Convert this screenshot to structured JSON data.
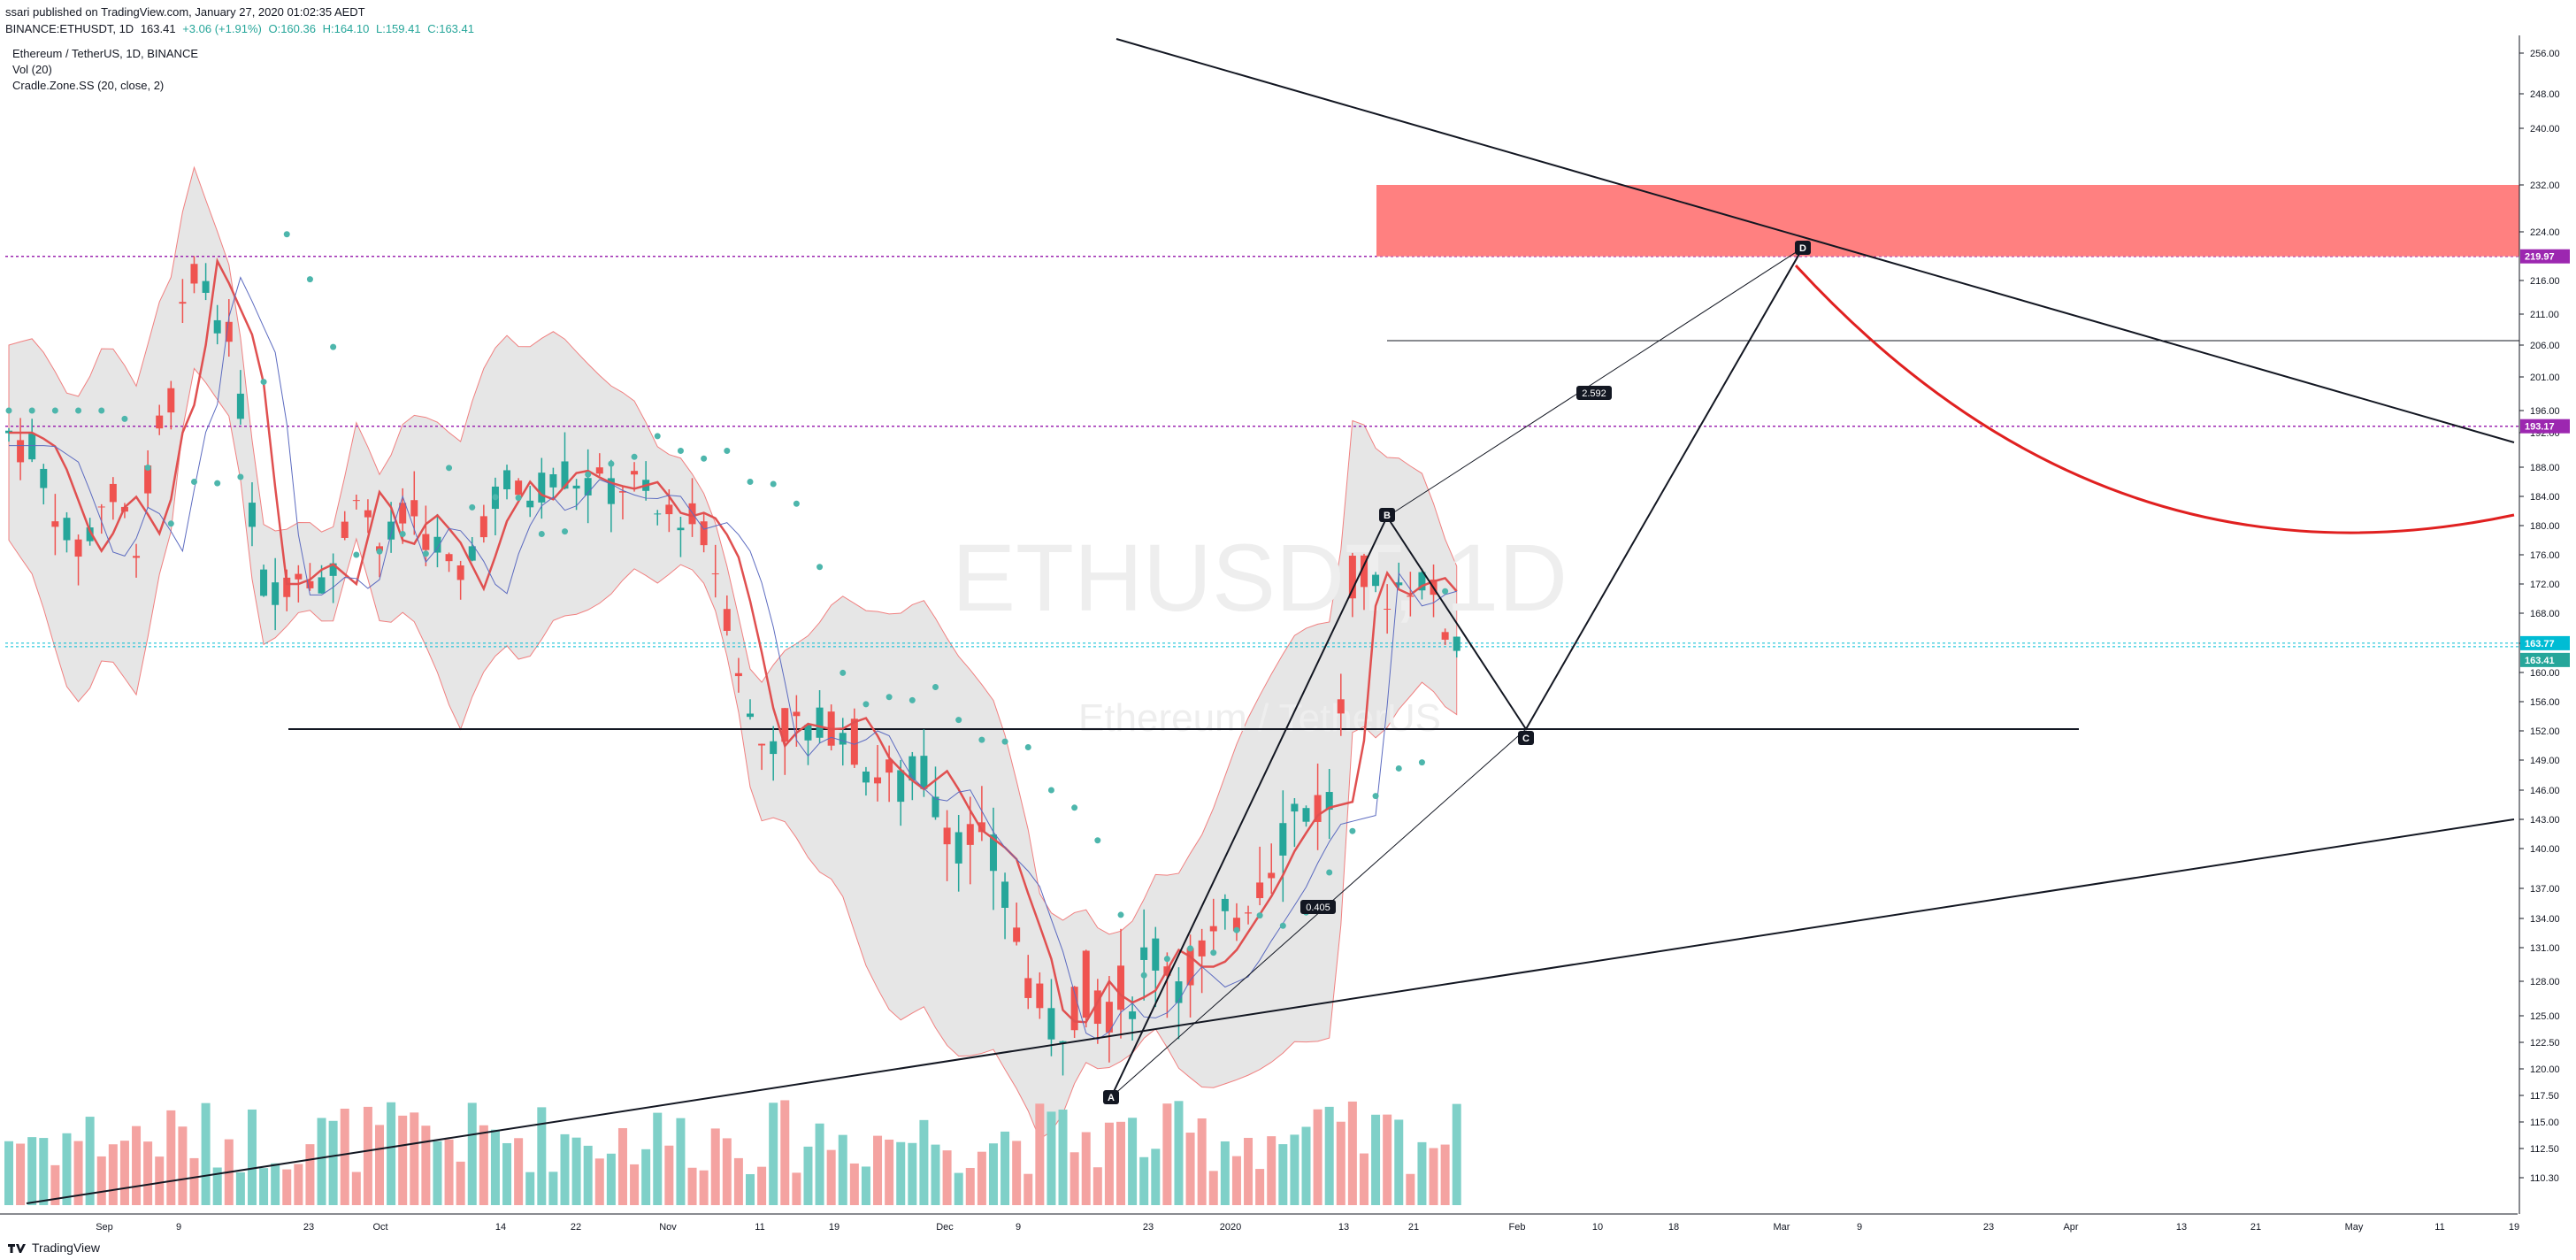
{
  "header": {
    "publisher": "ssari published on TradingView.com, January 27, 2020 01:02:35 AEDT",
    "symbol": "BINANCE:ETHUSDT, 1D",
    "last": "163.41",
    "change": "+3.06 (+1.91%)",
    "open": "O:160.36",
    "high": "H:164.10",
    "low": "L:159.41",
    "close": "C:163.41"
  },
  "legend": {
    "title": "Ethereum / TetherUS, 1D, BINANCE",
    "volume": "Vol (20)",
    "indicator": "Cradle.Zone.SS (20, close, 2)"
  },
  "watermark": {
    "symbol": "ETHUSDT, 1D",
    "name": "Ethereum / TetherUS"
  },
  "footer": {
    "brand": "TradingView"
  },
  "colors": {
    "up": "#26a69a",
    "down": "#ef5350",
    "zone": "#ff8080",
    "purple": "#9c27b0",
    "cyan": "#00bcd4"
  },
  "chart_data": {
    "type": "candlestick",
    "y_ticks": [
      "256.00",
      "248.00",
      "240.00",
      "232.00",
      "224.00",
      "216.00",
      "211.00",
      "206.00",
      "201.00",
      "196.00",
      "192.00",
      "188.00",
      "184.00",
      "180.00",
      "176.00",
      "172.00",
      "168.00",
      "164.00",
      "160.00",
      "156.00",
      "152.00",
      "149.00",
      "146.00",
      "143.00",
      "140.00",
      "137.00",
      "134.00",
      "131.00",
      "128.00",
      "125.00",
      "122.50",
      "120.00",
      "117.50",
      "115.00",
      "112.50",
      "110.30"
    ],
    "x_ticks": [
      "Sep",
      "9",
      "23",
      "Oct",
      "14",
      "22",
      "Nov",
      "11",
      "19",
      "Dec",
      "9",
      "23",
      "2020",
      "13",
      "21",
      "Feb",
      "10",
      "18",
      "Mar",
      "9",
      "23",
      "Apr",
      "13",
      "21",
      "May",
      "11",
      "19"
    ],
    "price_labels": [
      {
        "value": "219.97",
        "color": "#9c27b0"
      },
      {
        "value": "193.17",
        "color": "#9c27b0"
      },
      {
        "value": "163.77",
        "color": "#00bcd4"
      },
      {
        "value": "163.41",
        "color": "#26a69a"
      }
    ],
    "pattern_points": [
      {
        "label": "A",
        "price": 118.5
      },
      {
        "label": "B",
        "price": 180.5
      },
      {
        "label": "C",
        "price": 154.5
      },
      {
        "label": "D",
        "price": 219.97
      }
    ],
    "ratios": [
      "2.592",
      "0.405"
    ],
    "horizontal_levels": [
      219.97,
      193.17,
      163.77,
      155.0,
      206.0
    ],
    "sell_zone": {
      "from": 219.97,
      "to": 232.0
    },
    "last_price": 163.41
  }
}
